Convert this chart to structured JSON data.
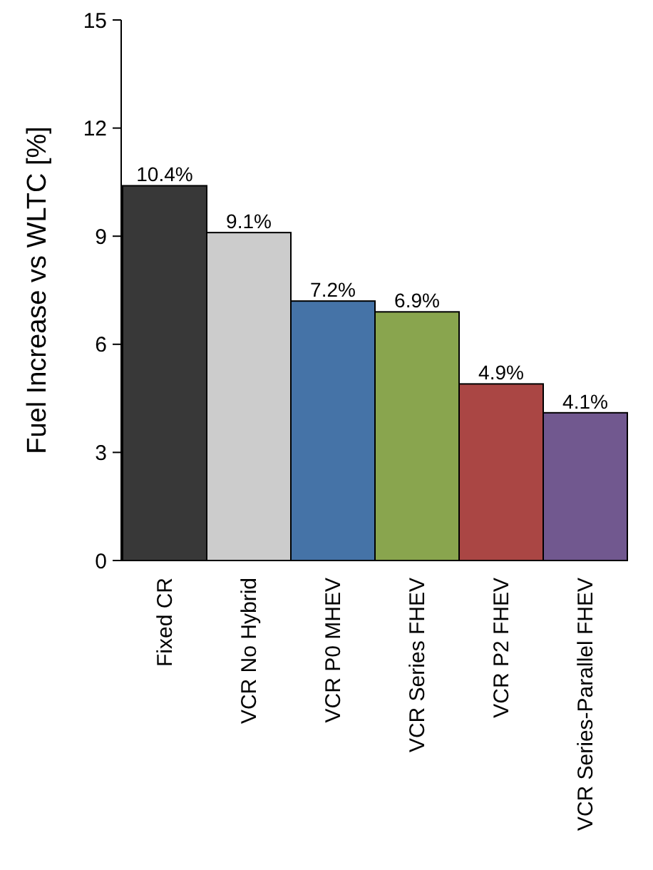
{
  "chart_data": {
    "type": "bar",
    "ylabel": "Fuel Increase vs WLTC [%]",
    "categories": [
      "Fixed CR",
      "VCR No Hybrid",
      "VCR P0 MHEV",
      "VCR Series FHEV",
      "VCR P2 FHEV",
      "VCR Series-Parallel FHEV"
    ],
    "values": [
      10.4,
      9.1,
      7.2,
      6.9,
      4.9,
      4.1
    ],
    "colors": [
      "#383838",
      "#cccccc",
      "#4573a7",
      "#89a54e",
      "#aa4644",
      "#71588f"
    ],
    "value_labels": [
      "10.4%",
      "9.1%",
      "7.2%",
      "6.9%",
      "4.9%",
      "4.1%"
    ],
    "ylim": [
      0,
      15
    ],
    "yticks": [
      0,
      3,
      6,
      9,
      12,
      15
    ],
    "grid": false
  }
}
